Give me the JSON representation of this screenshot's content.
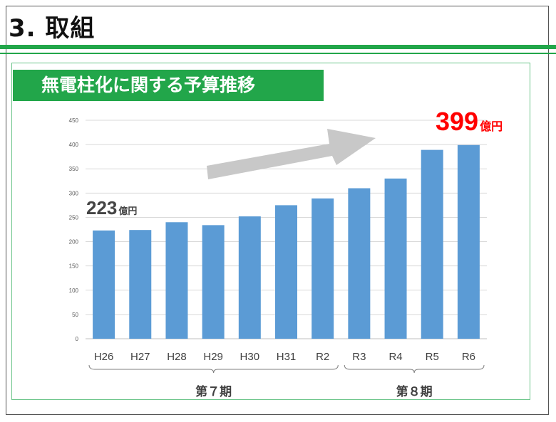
{
  "slide": {
    "title": "3. 取組",
    "banner": "無電柱化に関する予算推移"
  },
  "callouts": {
    "first_value": "223",
    "first_unit": "億円",
    "last_value": "399",
    "last_unit": "億円"
  },
  "periods": [
    {
      "label": "第７期",
      "from": "H26",
      "to": "R2"
    },
    {
      "label": "第８期",
      "from": "R3",
      "to": "R6"
    }
  ],
  "colors": {
    "accent": "#22a64a",
    "bar": "#5b9bd5",
    "highlight": "#ff0000",
    "arrow": "#c8c8c8"
  },
  "chart_data": {
    "type": "bar",
    "categories": [
      "H26",
      "H27",
      "H28",
      "H29",
      "H30",
      "H31",
      "R2",
      "R3",
      "R4",
      "R5",
      "R6"
    ],
    "values": [
      223,
      224,
      240,
      234,
      252,
      275,
      289,
      310,
      330,
      389,
      399
    ],
    "ylim": [
      0,
      450
    ],
    "yticks": [
      0,
      50,
      100,
      150,
      200,
      250,
      300,
      350,
      400,
      450
    ],
    "grid": true,
    "trend_arrow": "increasing"
  }
}
